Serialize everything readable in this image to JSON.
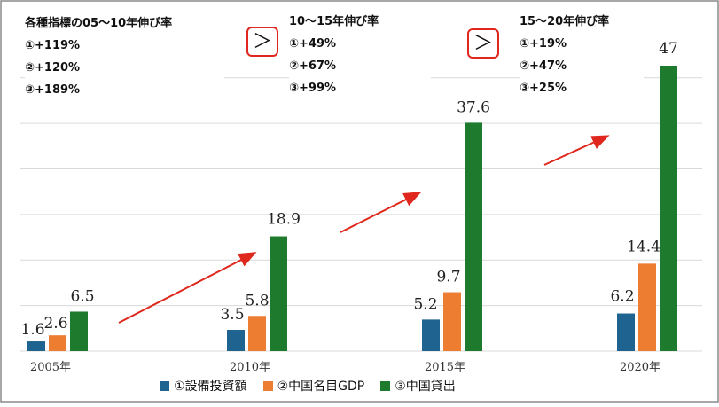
{
  "chart_data": {
    "type": "bar",
    "categories": [
      "2005年",
      "2010年",
      "2015年",
      "2020年"
    ],
    "series": [
      {
        "name": "①設備投資額",
        "values": [
          1.6,
          3.5,
          5.2,
          6.2
        ],
        "labels": [
          "1.6",
          "3.5",
          "5.2",
          "6.2"
        ],
        "color": "#1f6391"
      },
      {
        "name": "②中国名目GDP",
        "values": [
          2.6,
          5.8,
          9.7,
          14.4
        ],
        "labels": [
          "2.6",
          "5.8",
          "9.7",
          "14.4"
        ],
        "color": "#ed7d31"
      },
      {
        "name": "③中国貸出",
        "values": [
          6.5,
          18.9,
          37.6,
          47
        ],
        "labels": [
          "6.5",
          "18.9",
          "37.6",
          "47"
        ],
        "color": "#1e7a2d"
      }
    ],
    "ylim": [
      0,
      50
    ],
    "grid": true,
    "legend": "bottom"
  },
  "notes": [
    {
      "title": "各種指標の05～10年伸び率",
      "lines": [
        "①+119%",
        "②+120%",
        "③+189%"
      ]
    },
    {
      "title": "10～15年伸び率",
      "lines": [
        "①+49%",
        "②+67%",
        "③+99%"
      ]
    },
    {
      "title": "15～20年伸び率",
      "lines": [
        "①+19%",
        "②+47%",
        "③+25%"
      ]
    }
  ],
  "comparison_symbol": "＞",
  "colors": {
    "arrow": "#e0271d",
    "grid": "#d9d9d9",
    "frame": "#8a8a8a"
  }
}
